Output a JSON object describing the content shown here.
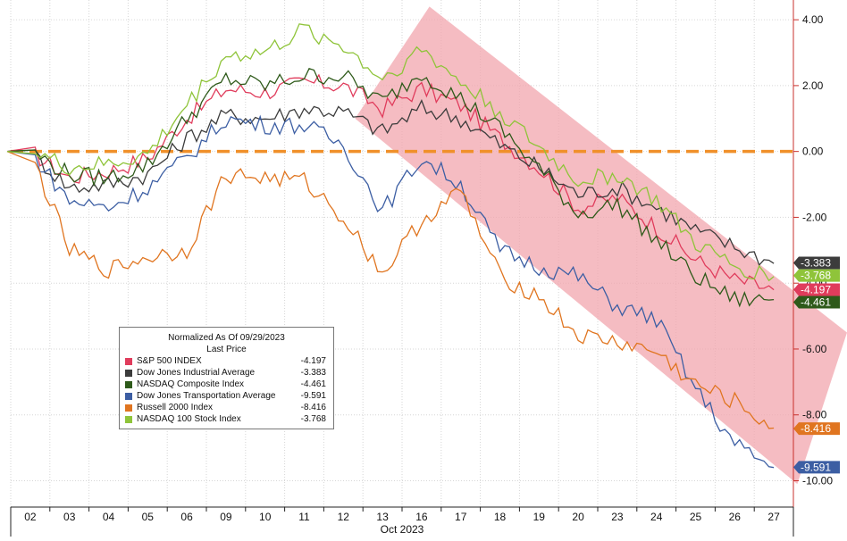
{
  "chart_data": {
    "type": "line",
    "xlabel": "Oct 2023",
    "x_ticks": [
      "02",
      "03",
      "04",
      "05",
      "06",
      "09",
      "10",
      "11",
      "12",
      "13",
      "16",
      "17",
      "18",
      "19",
      "20",
      "23",
      "24",
      "25",
      "26",
      "27"
    ],
    "y_ticks": [
      "4.00",
      "2.00",
      "0.00",
      "-2.00",
      "-4.00",
      "-6.00",
      "-8.00",
      "-10.00"
    ],
    "ylim": [
      -10.8,
      4.6
    ],
    "grid": true,
    "baseline": 0,
    "channel": "pink shaded downtrend channel",
    "legend": {
      "title": "Normalized As Of 09/29/2023",
      "subtitle": "Last Price",
      "placement": "bottom-left"
    },
    "series": [
      {
        "name": "S&P 500 INDEX",
        "color": "#e03c5c",
        "last": "-4.197",
        "values": [
          0,
          -0.8,
          -0.6,
          -0.2,
          1.0,
          1.9,
          1.8,
          2.1,
          2.0,
          1.3,
          1.9,
          1.4,
          0.4,
          -0.5,
          -1.7,
          -1.4,
          -2.3,
          -3.3,
          -3.9,
          -4.2
        ]
      },
      {
        "name": "Dow Jones Industrial Average",
        "color": "#3c3c3c",
        "last": "-3.383",
        "values": [
          0,
          -1.1,
          -1.0,
          -0.7,
          0.4,
          1.1,
          1.0,
          1.3,
          1.2,
          0.6,
          1.3,
          1.0,
          0.2,
          -0.5,
          -1.3,
          -1.1,
          -1.7,
          -2.4,
          -2.9,
          -3.4
        ]
      },
      {
        "name": "NASDAQ Composite Index",
        "color": "#2e5a1a",
        "last": "-4.461",
        "values": [
          0,
          -0.7,
          -0.8,
          -0.4,
          1.0,
          2.2,
          2.0,
          2.3,
          2.3,
          1.5,
          2.4,
          1.6,
          0.7,
          -0.5,
          -1.9,
          -1.6,
          -2.7,
          -3.8,
          -4.5,
          -4.5
        ]
      },
      {
        "name": "Dow Jones Transportation Average",
        "color": "#3c5ea3",
        "last": "-9.591",
        "values": [
          0,
          -1.5,
          -1.7,
          -1.1,
          -0.2,
          1.0,
          0.8,
          0.8,
          0.2,
          -1.8,
          -0.2,
          -1.0,
          -3.0,
          -3.5,
          -3.8,
          -4.7,
          -5.1,
          -7.2,
          -8.9,
          -9.6
        ]
      },
      {
        "name": "Russell 2000 Index",
        "color": "#e07520",
        "last": "-8.416",
        "values": [
          0,
          -3.0,
          -3.6,
          -3.2,
          -3.0,
          -0.7,
          -0.8,
          -0.9,
          -2.0,
          -3.7,
          -2.1,
          -1.2,
          -3.8,
          -4.4,
          -5.6,
          -5.8,
          -6.1,
          -7.1,
          -7.6,
          -8.4
        ]
      },
      {
        "name": "NASDAQ 100 Stock Index",
        "color": "#8fc43a",
        "last": "-3.768",
        "values": [
          0,
          -0.5,
          -0.4,
          -0.1,
          1.4,
          2.9,
          3.0,
          3.7,
          3.2,
          2.2,
          3.1,
          2.1,
          1.2,
          0.1,
          -0.9,
          -0.7,
          -1.5,
          -2.8,
          -3.5,
          -3.8
        ]
      }
    ]
  }
}
